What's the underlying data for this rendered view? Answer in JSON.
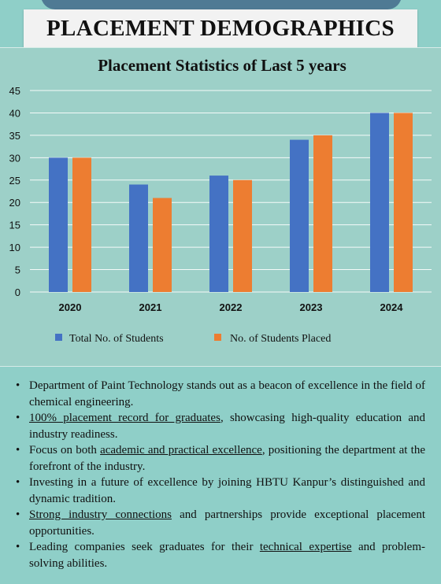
{
  "banner": {
    "title": "PLACEMENT DEMOGRAPHICS"
  },
  "chart_data": {
    "type": "bar",
    "title": "Placement Statistics of Last 5 years",
    "categories": [
      "2020",
      "2021",
      "2022",
      "2023",
      "2024"
    ],
    "series": [
      {
        "name": "Total No. of Students",
        "values": [
          30,
          24,
          26,
          34,
          40
        ],
        "color": "#4472c4"
      },
      {
        "name": "No. of Students Placed",
        "values": [
          30,
          21,
          25,
          35,
          40
        ],
        "color": "#ed7d31"
      }
    ],
    "yticks": [
      "0",
      "5",
      "10",
      "15",
      "20",
      "25",
      "30",
      "35",
      "40",
      "45"
    ],
    "ylim": [
      0,
      45
    ],
    "grid": true,
    "legend": "bottom"
  },
  "bullets": [
    {
      "parts": [
        {
          "text": "Department of Paint Technology stands out as a beacon of excellence in the field of chemical engineering.",
          "u": false
        }
      ]
    },
    {
      "parts": [
        {
          "text": "100% placement record for graduates",
          "u": true
        },
        {
          "text": ", showcasing high-quality education and industry readiness.",
          "u": false
        }
      ]
    },
    {
      "parts": [
        {
          "text": "Focus on both ",
          "u": false
        },
        {
          "text": "academic and practical excellence",
          "u": true
        },
        {
          "text": ", positioning the department at the forefront of the industry.",
          "u": false
        }
      ]
    },
    {
      "parts": [
        {
          "text": "Investing in a future of excellence by joining HBTU Kanpur’s distinguished and dynamic tradition.",
          "u": false
        }
      ]
    },
    {
      "parts": [
        {
          "text": "Strong industry connections",
          "u": true
        },
        {
          "text": " and partnerships provide exceptional placement opportunities.",
          "u": false
        }
      ]
    },
    {
      "parts": [
        {
          "text": "Leading companies seek graduates for their ",
          "u": false
        },
        {
          "text": "technical expertise",
          "u": true
        },
        {
          "text": " and problem-solving abilities.",
          "u": false
        }
      ]
    }
  ]
}
